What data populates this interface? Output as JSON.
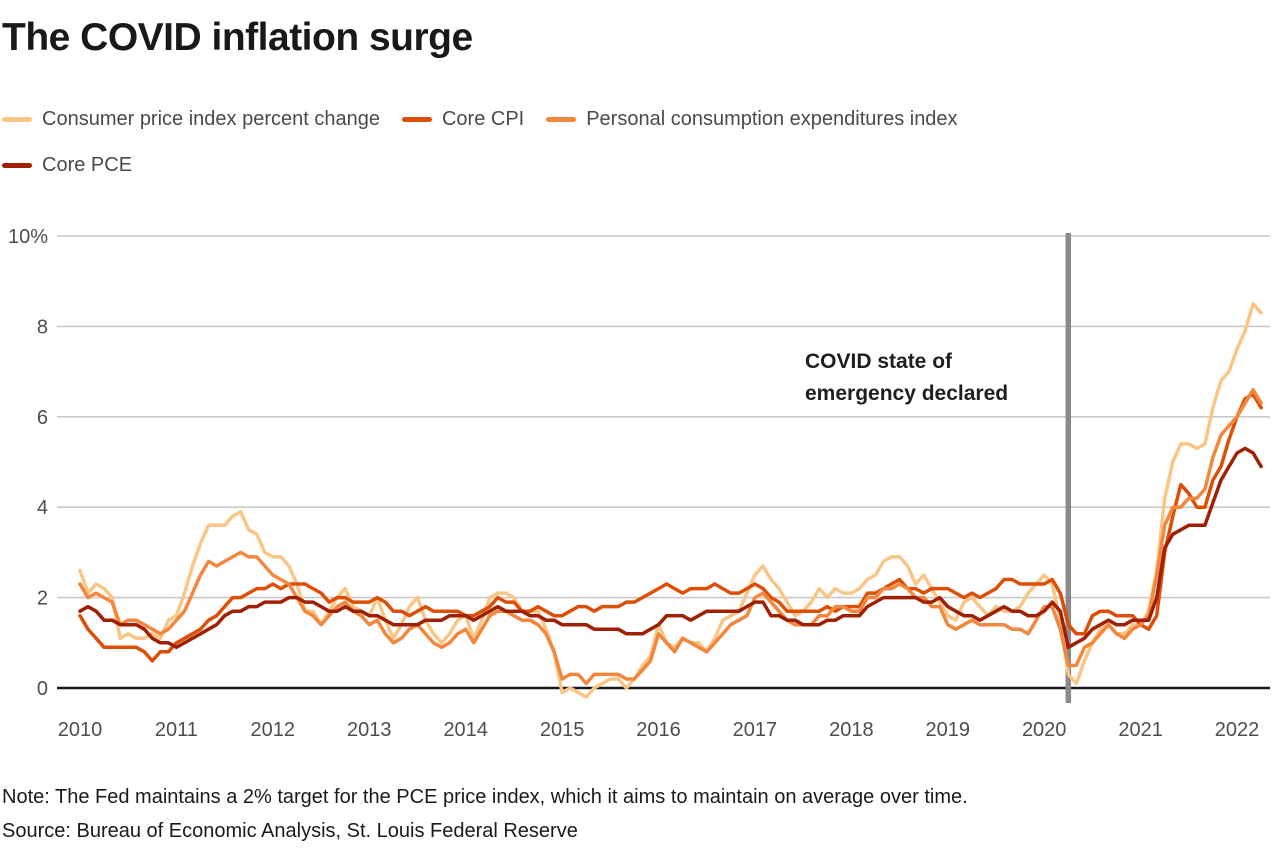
{
  "page": {
    "title": "The COVID inflation surge",
    "note": "Note: The Fed maintains a 2% target for the PCE price index, which it aims to maintain on average over time.",
    "source": "Source: Bureau of Economic Analysis, St. Louis Federal Reserve"
  },
  "colors": {
    "grid": "#c9c9c9",
    "axis": "#1a1a1a",
    "event_line": "#8a8a8a",
    "tick_text": "#4d4d4d"
  },
  "legend": {
    "rows": [
      [
        0,
        1,
        2
      ],
      [
        3
      ]
    ]
  },
  "chart_data": {
    "type": "line",
    "title": "The COVID inflation surge",
    "x_unit": "month",
    "x_start": "2010-01",
    "x_end": "2022-04",
    "x_tick_labels": [
      "2010",
      "2011",
      "2012",
      "2013",
      "2014",
      "2015",
      "2016",
      "2017",
      "2018",
      "2019",
      "2020",
      "2021",
      "2022"
    ],
    "ylim": [
      0,
      10
    ],
    "yticks": [
      0,
      2,
      4,
      6,
      8,
      10
    ],
    "ytick_labels": [
      "0",
      "2",
      "4",
      "6",
      "8",
      "10%"
    ],
    "grid": true,
    "legend_position": "top",
    "event_line_month_index": 123,
    "annotation": {
      "lines": [
        "COVID state of",
        "emergency declared"
      ],
      "anchor": "left-of-event-line"
    },
    "series": [
      {
        "id": "cpi",
        "name": "Consumer price index percent change",
        "color": "#f9c685",
        "values": [
          2.6,
          2.1,
          2.3,
          2.2,
          2.0,
          1.1,
          1.2,
          1.1,
          1.1,
          1.2,
          1.1,
          1.5,
          1.6,
          2.1,
          2.7,
          3.2,
          3.6,
          3.6,
          3.6,
          3.8,
          3.9,
          3.5,
          3.4,
          3.0,
          2.9,
          2.9,
          2.7,
          2.3,
          1.7,
          1.7,
          1.4,
          1.7,
          2.0,
          2.2,
          1.8,
          1.7,
          1.6,
          2.0,
          1.5,
          1.1,
          1.4,
          1.8,
          2.0,
          1.5,
          1.2,
          1.0,
          1.2,
          1.5,
          1.6,
          1.1,
          1.5,
          2.0,
          2.1,
          2.1,
          2.0,
          1.7,
          1.7,
          1.7,
          1.3,
          0.8,
          -0.1,
          0.0,
          -0.1,
          -0.2,
          0.0,
          0.1,
          0.2,
          0.2,
          0.0,
          0.2,
          0.5,
          0.7,
          1.4,
          1.0,
          0.9,
          1.1,
          1.0,
          1.0,
          0.8,
          1.1,
          1.5,
          1.6,
          1.7,
          2.1,
          2.5,
          2.7,
          2.4,
          2.2,
          1.9,
          1.6,
          1.7,
          1.9,
          2.2,
          2.0,
          2.2,
          2.1,
          2.1,
          2.2,
          2.4,
          2.5,
          2.8,
          2.9,
          2.9,
          2.7,
          2.3,
          2.5,
          2.2,
          1.9,
          1.6,
          1.5,
          1.9,
          2.0,
          1.8,
          1.6,
          1.8,
          1.7,
          1.7,
          1.8,
          2.1,
          2.3,
          2.5,
          2.3,
          1.5,
          0.3,
          0.1,
          0.6,
          1.0,
          1.3,
          1.4,
          1.2,
          1.2,
          1.4,
          1.4,
          1.7,
          2.6,
          4.2,
          5.0,
          5.4,
          5.4,
          5.3,
          5.4,
          6.2,
          6.8,
          7.0,
          7.5,
          7.9,
          8.5,
          8.3
        ]
      },
      {
        "id": "core-cpi",
        "name": "Core CPI",
        "color": "#dd4f07",
        "values": [
          1.6,
          1.3,
          1.1,
          0.9,
          0.9,
          0.9,
          0.9,
          0.9,
          0.8,
          0.6,
          0.8,
          0.8,
          1.0,
          1.1,
          1.2,
          1.3,
          1.5,
          1.6,
          1.8,
          2.0,
          2.0,
          2.1,
          2.2,
          2.2,
          2.3,
          2.2,
          2.3,
          2.3,
          2.3,
          2.2,
          2.1,
          1.9,
          2.0,
          2.0,
          1.9,
          1.9,
          1.9,
          2.0,
          1.9,
          1.7,
          1.7,
          1.6,
          1.7,
          1.8,
          1.7,
          1.7,
          1.7,
          1.7,
          1.6,
          1.6,
          1.7,
          1.8,
          2.0,
          1.9,
          1.9,
          1.7,
          1.7,
          1.8,
          1.7,
          1.6,
          1.6,
          1.7,
          1.8,
          1.8,
          1.7,
          1.8,
          1.8,
          1.8,
          1.9,
          1.9,
          2.0,
          2.1,
          2.2,
          2.3,
          2.2,
          2.1,
          2.2,
          2.2,
          2.2,
          2.3,
          2.2,
          2.1,
          2.1,
          2.2,
          2.3,
          2.2,
          2.0,
          1.9,
          1.7,
          1.7,
          1.7,
          1.7,
          1.7,
          1.8,
          1.7,
          1.8,
          1.8,
          1.8,
          2.1,
          2.1,
          2.2,
          2.3,
          2.4,
          2.2,
          2.2,
          2.1,
          2.2,
          2.2,
          2.2,
          2.1,
          2.0,
          2.1,
          2.0,
          2.1,
          2.2,
          2.4,
          2.4,
          2.3,
          2.3,
          2.3,
          2.3,
          2.4,
          2.1,
          1.4,
          1.2,
          1.2,
          1.6,
          1.7,
          1.7,
          1.6,
          1.6,
          1.6,
          1.4,
          1.3,
          1.6,
          3.0,
          3.8,
          4.5,
          4.3,
          4.0,
          4.0,
          4.6,
          4.9,
          5.5,
          6.0,
          6.4,
          6.5,
          6.2
        ]
      },
      {
        "id": "pce",
        "name": "Personal consumption expenditures index",
        "color": "#f4873e",
        "values": [
          2.3,
          2.0,
          2.1,
          2.0,
          1.9,
          1.4,
          1.5,
          1.5,
          1.4,
          1.3,
          1.2,
          1.3,
          1.5,
          1.7,
          2.1,
          2.5,
          2.8,
          2.7,
          2.8,
          2.9,
          3.0,
          2.9,
          2.9,
          2.7,
          2.5,
          2.4,
          2.3,
          2.0,
          1.7,
          1.6,
          1.4,
          1.6,
          1.8,
          1.9,
          1.7,
          1.6,
          1.4,
          1.5,
          1.2,
          1.0,
          1.1,
          1.3,
          1.4,
          1.2,
          1.0,
          0.9,
          1.0,
          1.2,
          1.3,
          1.0,
          1.3,
          1.6,
          1.7,
          1.7,
          1.6,
          1.5,
          1.5,
          1.4,
          1.2,
          0.8,
          0.2,
          0.3,
          0.3,
          0.1,
          0.3,
          0.3,
          0.3,
          0.3,
          0.2,
          0.2,
          0.4,
          0.6,
          1.2,
          1.0,
          0.8,
          1.1,
          1.0,
          0.9,
          0.8,
          1.0,
          1.2,
          1.4,
          1.5,
          1.6,
          2.0,
          2.1,
          1.9,
          1.7,
          1.5,
          1.4,
          1.4,
          1.4,
          1.6,
          1.6,
          1.8,
          1.8,
          1.7,
          1.7,
          2.0,
          2.0,
          2.2,
          2.2,
          2.3,
          2.2,
          2.0,
          2.0,
          1.8,
          1.8,
          1.4,
          1.3,
          1.4,
          1.5,
          1.4,
          1.4,
          1.4,
          1.4,
          1.3,
          1.3,
          1.2,
          1.5,
          1.8,
          1.8,
          1.3,
          0.5,
          0.5,
          0.9,
          1.0,
          1.2,
          1.4,
          1.2,
          1.1,
          1.3,
          1.4,
          1.6,
          2.5,
          3.6,
          4.0,
          4.0,
          4.2,
          4.2,
          4.4,
          5.1,
          5.6,
          5.8,
          6.0,
          6.3,
          6.6,
          6.3
        ]
      },
      {
        "id": "core-pce",
        "name": "Core PCE",
        "color": "#a02005",
        "values": [
          1.7,
          1.8,
          1.7,
          1.5,
          1.5,
          1.4,
          1.4,
          1.4,
          1.3,
          1.1,
          1.0,
          1.0,
          0.9,
          1.0,
          1.1,
          1.2,
          1.3,
          1.4,
          1.6,
          1.7,
          1.7,
          1.8,
          1.8,
          1.9,
          1.9,
          1.9,
          2.0,
          2.0,
          1.9,
          1.9,
          1.8,
          1.7,
          1.7,
          1.8,
          1.7,
          1.7,
          1.6,
          1.6,
          1.5,
          1.4,
          1.4,
          1.4,
          1.4,
          1.5,
          1.5,
          1.5,
          1.6,
          1.6,
          1.6,
          1.5,
          1.6,
          1.7,
          1.8,
          1.7,
          1.7,
          1.7,
          1.6,
          1.6,
          1.5,
          1.5,
          1.4,
          1.4,
          1.4,
          1.4,
          1.3,
          1.3,
          1.3,
          1.3,
          1.2,
          1.2,
          1.2,
          1.3,
          1.4,
          1.6,
          1.6,
          1.6,
          1.5,
          1.6,
          1.7,
          1.7,
          1.7,
          1.7,
          1.7,
          1.8,
          1.9,
          1.9,
          1.6,
          1.6,
          1.5,
          1.5,
          1.4,
          1.4,
          1.4,
          1.5,
          1.5,
          1.6,
          1.6,
          1.6,
          1.8,
          1.9,
          2.0,
          2.0,
          2.0,
          2.0,
          2.0,
          1.9,
          1.9,
          2.0,
          1.8,
          1.7,
          1.6,
          1.6,
          1.5,
          1.6,
          1.7,
          1.8,
          1.7,
          1.7,
          1.6,
          1.6,
          1.7,
          1.9,
          1.7,
          0.9,
          1.0,
          1.1,
          1.3,
          1.4,
          1.5,
          1.4,
          1.4,
          1.5,
          1.5,
          1.5,
          2.0,
          3.1,
          3.4,
          3.5,
          3.6,
          3.6,
          3.6,
          4.1,
          4.6,
          4.9,
          5.2,
          5.3,
          5.2,
          4.9
        ]
      }
    ]
  }
}
